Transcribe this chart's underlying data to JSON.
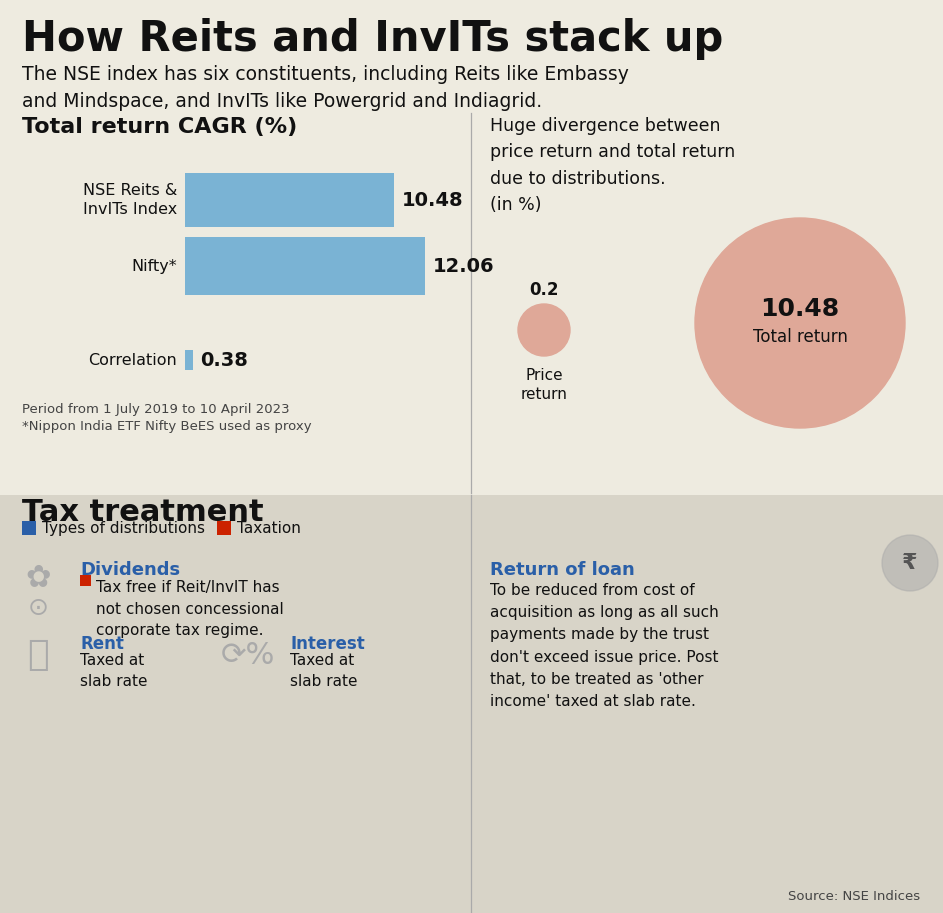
{
  "title": "How Reits and InvITs stack up",
  "subtitle": "The NSE index has six constituents, including Reits like Embassy\nand Mindspace, and InvITs like Powergrid and Indiagrid.",
  "bg_color": "#eeebe0",
  "section1_title": "Total return CAGR (%)",
  "bar_labels": [
    "NSE Reits &\nInvITs Index",
    "Nifty*",
    "Correlation"
  ],
  "bar_values": [
    10.48,
    12.06,
    0.38
  ],
  "bar_color": "#7ab3d4",
  "bar_value_labels": [
    "10.48",
    "12.06",
    "0.38"
  ],
  "bar_note1": "Period from 1 July 2019 to 10 April 2023",
  "bar_note2": "*Nippon India ETF Nifty BeES used as proxy",
  "bubble_title": "Huge divergence between\nprice return and total return\ndue to distributions.\n(in %)",
  "bubble_small_value": "0.2",
  "bubble_small_label": "Price\nreturn",
  "bubble_large_value": "10.48",
  "bubble_large_label": "Total return",
  "bubble_color": "#dfa898",
  "divider_color": "#aaaaaa",
  "section2_title": "Tax treatment",
  "section2_bg": "#d8d4c8",
  "legend_blue": "Types of distributions",
  "legend_red": "Taxation",
  "blue_color": "#2a5fa8",
  "red_color": "#cc2200",
  "div1_title": "Dividends",
  "div1_text": "Tax free if Reit/InvIT has\nnot chosen concessional\ncorporate tax regime.",
  "rent_title": "Rent",
  "rent_text": "Taxed at\nslab rate",
  "interest_title": "Interest",
  "interest_text": "Taxed at\nslab rate",
  "loan_title": "Return of loan",
  "loan_text": "To be reduced from cost of\nacquisition as long as all such\npayments made by the trust\ndon't exceed issue price. Post\nthat, to be treated as 'other\nincome' taxed at slab rate.",
  "source": "Source: NSE Indices",
  "icon_color": "#aaaaaa"
}
